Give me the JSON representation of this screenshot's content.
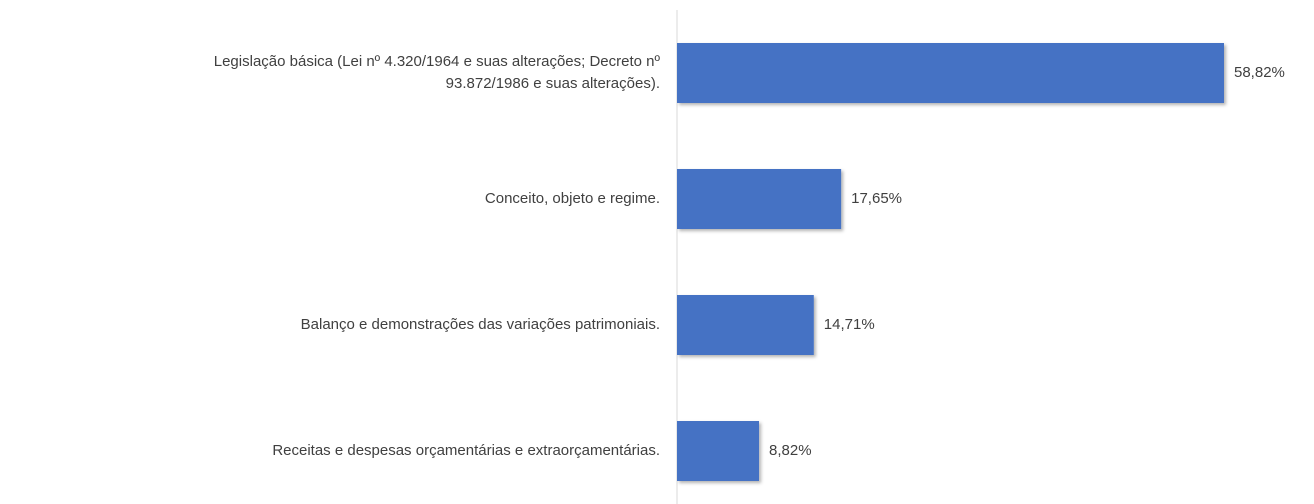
{
  "chart_data": {
    "type": "bar",
    "orientation": "horizontal",
    "categories": [
      "Legislação básica (Lei nº 4.320/1964 e suas alterações; Decreto nº\n93.872/1986 e suas alterações).",
      "Conceito, objeto e regime.",
      "Balanço e demonstrações das variações patrimoniais.",
      "Receitas e despesas orçamentárias e extraorçamentárias."
    ],
    "values": [
      58.82,
      17.65,
      14.71,
      8.82
    ],
    "value_labels": [
      "58,82%",
      "17,65%",
      "14,71%",
      "8,82%"
    ],
    "color": "#4472c4"
  }
}
